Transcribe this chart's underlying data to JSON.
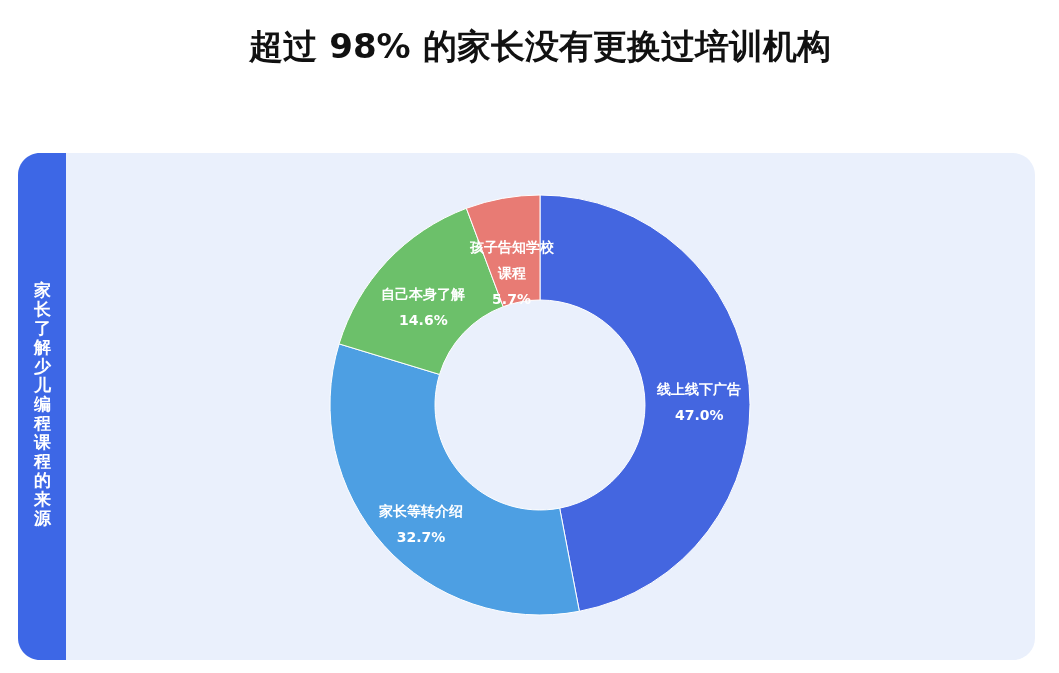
{
  "chart_data": {
    "type": "donut",
    "title": "超过 98% 的家长没有更换过培训机构",
    "annotations": [
      "家长了解少儿编程课程的来源"
    ],
    "categories": [
      "线上线下广告",
      "家长等转介绍",
      "自己本身了解",
      "孩子告知学校课程"
    ],
    "values": [
      47.0,
      32.7,
      14.6,
      5.7
    ],
    "colors": [
      "#4466e0",
      "#4d9fe3",
      "#6cc06a",
      "#e87b74"
    ],
    "value_labels": [
      "47.0%",
      "32.7%",
      "14.6%",
      "5.7%"
    ]
  }
}
